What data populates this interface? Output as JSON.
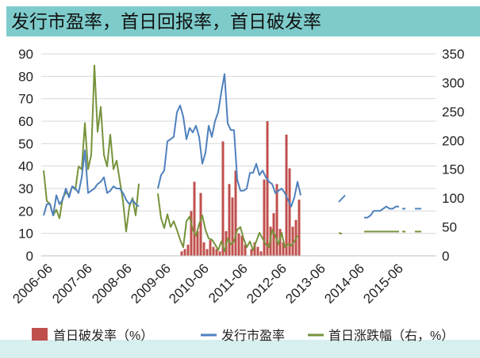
{
  "title": "发行市盈率，首日回报率，首日破发率",
  "colors": {
    "title_bar": "#7ecbcb",
    "bottom_band": "#d7efef",
    "bar": "#c0504d",
    "pe_line": "#4f81bd",
    "chg_line": "#77933c"
  },
  "chart_data": {
    "type": "bar+line",
    "title": "发行市盈率，首日回报率，首日破发率",
    "x_tick_labels": [
      "2006-06",
      "2007-06",
      "2008-06",
      "2009-06",
      "2010-06",
      "2011-06",
      "2012-06",
      "2013-06",
      "2014-06",
      "2015-06"
    ],
    "x_range": [
      0,
      115
    ],
    "left_axis": {
      "range": [
        0,
        90
      ],
      "ticks": [
        0,
        10,
        20,
        30,
        40,
        50,
        60,
        70,
        80,
        90
      ]
    },
    "right_axis": {
      "range": [
        0,
        350
      ],
      "ticks": [
        0,
        50,
        100,
        150,
        200,
        250,
        300,
        350
      ]
    },
    "legend": {
      "position": "bottom"
    },
    "series": [
      {
        "name": "首日破发率（%）",
        "legend_label": "首日破发率（%）",
        "type": "bar",
        "axis": "left",
        "points": [
          [
            43.5,
            2
          ],
          [
            44.5,
            3
          ],
          [
            45.5,
            5
          ],
          [
            46.5,
            20
          ],
          [
            47.5,
            33
          ],
          [
            48.5,
            11
          ],
          [
            49.5,
            28
          ],
          [
            50.5,
            6
          ],
          [
            51.5,
            3
          ],
          [
            52.5,
            7
          ],
          [
            53.5,
            4
          ],
          [
            54.5,
            3
          ],
          [
            55.5,
            2
          ],
          [
            56.5,
            51
          ],
          [
            57.5,
            11
          ],
          [
            58.5,
            32
          ],
          [
            59.5,
            26
          ],
          [
            60.5,
            38
          ],
          [
            61.5,
            10
          ],
          [
            62.5,
            9
          ],
          [
            63.5,
            5
          ],
          [
            65.5,
            3
          ],
          [
            66.5,
            6
          ],
          [
            67.5,
            4
          ],
          [
            68.5,
            2
          ],
          [
            69.5,
            34
          ],
          [
            70.5,
            60
          ],
          [
            71.5,
            13
          ],
          [
            72.5,
            19
          ],
          [
            73.5,
            32
          ],
          [
            74.5,
            12
          ],
          [
            75.5,
            6
          ],
          [
            76.5,
            54
          ],
          [
            77.5,
            39
          ],
          [
            78.5,
            13
          ],
          [
            79.5,
            16
          ],
          [
            80.5,
            25
          ]
        ]
      },
      {
        "name": "发行市盈率",
        "legend_label": "发行市盈率",
        "type": "line",
        "axis": "left",
        "segments": [
          [
            [
              0,
              18
            ],
            [
              1,
              23
            ],
            [
              2,
              23
            ],
            [
              3,
              18
            ],
            [
              4,
              27
            ],
            [
              5,
              23
            ],
            [
              6,
              25
            ],
            [
              7,
              30
            ],
            [
              8,
              26
            ],
            [
              9,
              31
            ],
            [
              10,
              30
            ],
            [
              11,
              28
            ],
            [
              12,
              35
            ],
            [
              13,
              47
            ],
            [
              14,
              28
            ],
            [
              15,
              29
            ],
            [
              16,
              30
            ],
            [
              17,
              32
            ],
            [
              18,
              33
            ],
            [
              19,
              35
            ],
            [
              20,
              28
            ],
            [
              21,
              29
            ],
            [
              22,
              31
            ],
            [
              23,
              30
            ],
            [
              24,
              30
            ],
            [
              25,
              28
            ],
            [
              26,
              25
            ],
            [
              27,
              23
            ],
            [
              28,
              25
            ],
            [
              29,
              23
            ],
            [
              30,
              22
            ]
          ],
          [
            [
              36,
              30
            ],
            [
              37,
              36
            ],
            [
              38,
              38
            ],
            [
              39,
              51
            ],
            [
              40,
              52
            ],
            [
              41,
              53
            ],
            [
              42,
              64
            ],
            [
              43,
              67
            ],
            [
              44,
              62
            ],
            [
              45,
              52
            ],
            [
              46,
              57
            ],
            [
              47,
              55
            ],
            [
              48,
              58
            ],
            [
              49,
              53
            ],
            [
              50,
              41
            ],
            [
              51,
              46
            ],
            [
              52,
              58
            ],
            [
              53,
              53
            ],
            [
              54,
              60
            ],
            [
              55,
              64
            ],
            [
              56,
              73
            ],
            [
              57,
              81
            ],
            [
              58,
              59
            ],
            [
              59,
              56
            ],
            [
              60,
              56
            ],
            [
              61,
              34
            ],
            [
              62,
              29
            ],
            [
              63,
              29
            ],
            [
              64,
              30
            ],
            [
              65,
              37
            ],
            [
              66,
              37
            ],
            [
              67,
              41
            ],
            [
              68,
              36
            ],
            [
              69,
              38
            ],
            [
              70,
              35
            ],
            [
              71,
              33
            ],
            [
              72,
              32
            ],
            [
              73,
              28
            ],
            [
              74,
              29
            ],
            [
              75,
              30
            ],
            [
              76,
              28
            ],
            [
              77,
              25
            ],
            [
              78,
              22
            ],
            [
              79,
              26
            ],
            [
              80,
              33
            ],
            [
              81,
              27
            ]
          ],
          [
            [
              93,
              24
            ],
            [
              95,
              27
            ]
          ],
          [
            [
              101,
              17
            ],
            [
              102,
              17
            ],
            [
              103,
              18
            ],
            [
              104,
              20
            ],
            [
              105,
              20
            ],
            [
              106,
              20
            ],
            [
              107,
              21
            ],
            [
              108,
              22
            ],
            [
              109,
              21
            ],
            [
              110,
              21
            ],
            [
              111,
              22
            ],
            [
              112,
              22
            ]
          ],
          [
            [
              113,
              21
            ],
            [
              114,
              21
            ]
          ],
          [
            [
              117,
              21
            ],
            [
              118,
              21
            ],
            [
              119,
              21
            ]
          ]
        ]
      },
      {
        "name": "首日涨跌幅（右，%）",
        "legend_label": "首日涨跌幅（右，%）",
        "type": "line",
        "axis": "right",
        "segments": [
          [
            [
              0,
              148
            ],
            [
              1,
              95
            ],
            [
              2,
              90
            ],
            [
              3,
              70
            ],
            [
              4,
              80
            ],
            [
              5,
              65
            ],
            [
              6,
              100
            ],
            [
              7,
              110
            ],
            [
              8,
              105
            ],
            [
              9,
              120
            ],
            [
              10,
              115
            ],
            [
              11,
              155
            ],
            [
              12,
              150
            ],
            [
              13,
              230
            ],
            [
              14,
              150
            ],
            [
              15,
              175
            ],
            [
              16,
              330
            ],
            [
              17,
              215
            ],
            [
              18,
              258
            ],
            [
              19,
              175
            ],
            [
              20,
              155
            ],
            [
              21,
              210
            ],
            [
              22,
              150
            ],
            [
              23,
              165
            ],
            [
              24,
              130
            ],
            [
              25,
              95
            ],
            [
              26,
              42
            ],
            [
              27,
              85
            ],
            [
              28,
              100
            ],
            [
              29,
              70
            ],
            [
              30,
              125
            ]
          ],
          [
            [
              36,
              108
            ],
            [
              37,
              65
            ],
            [
              38,
              48
            ],
            [
              39,
              72
            ],
            [
              40,
              50
            ],
            [
              41,
              60
            ],
            [
              42,
              45
            ],
            [
              43,
              28
            ],
            [
              44,
              15
            ],
            [
              45,
              60
            ],
            [
              46,
              68
            ],
            [
              47,
              45
            ],
            [
              48,
              35
            ],
            [
              49,
              55
            ],
            [
              50,
              70
            ],
            [
              51,
              45
            ],
            [
              52,
              30
            ],
            [
              53,
              28
            ],
            [
              54,
              20
            ],
            [
              55,
              10
            ],
            [
              56,
              25
            ],
            [
              57,
              8
            ],
            [
              58,
              30
            ],
            [
              59,
              20
            ],
            [
              60,
              25
            ],
            [
              61,
              45
            ],
            [
              62,
              50
            ],
            [
              63,
              30
            ],
            [
              64,
              15
            ],
            [
              65,
              25
            ],
            [
              66,
              10
            ],
            [
              67,
              25
            ],
            [
              68,
              40
            ],
            [
              69,
              30
            ],
            [
              70,
              20
            ],
            [
              71,
              15
            ],
            [
              72,
              45
            ],
            [
              73,
              35
            ],
            [
              74,
              20
            ],
            [
              75,
              40
            ],
            [
              76,
              15
            ],
            [
              77,
              20
            ],
            [
              78,
              18
            ],
            [
              79,
              25
            ],
            [
              80,
              35
            ]
          ],
          [
            [
              93,
              40
            ],
            [
              94,
              38
            ]
          ],
          [
            [
              101,
              42
            ],
            [
              102,
              42
            ],
            [
              103,
              42
            ],
            [
              104,
              42
            ],
            [
              105,
              42
            ],
            [
              106,
              42
            ],
            [
              107,
              42
            ],
            [
              108,
              42
            ],
            [
              109,
              42
            ],
            [
              110,
              42
            ],
            [
              111,
              42
            ],
            [
              112,
              42
            ]
          ],
          [
            [
              113,
              42
            ],
            [
              114,
              42
            ]
          ],
          [
            [
              117,
              42
            ],
            [
              118,
              42
            ],
            [
              119,
              42
            ]
          ]
        ]
      }
    ]
  }
}
